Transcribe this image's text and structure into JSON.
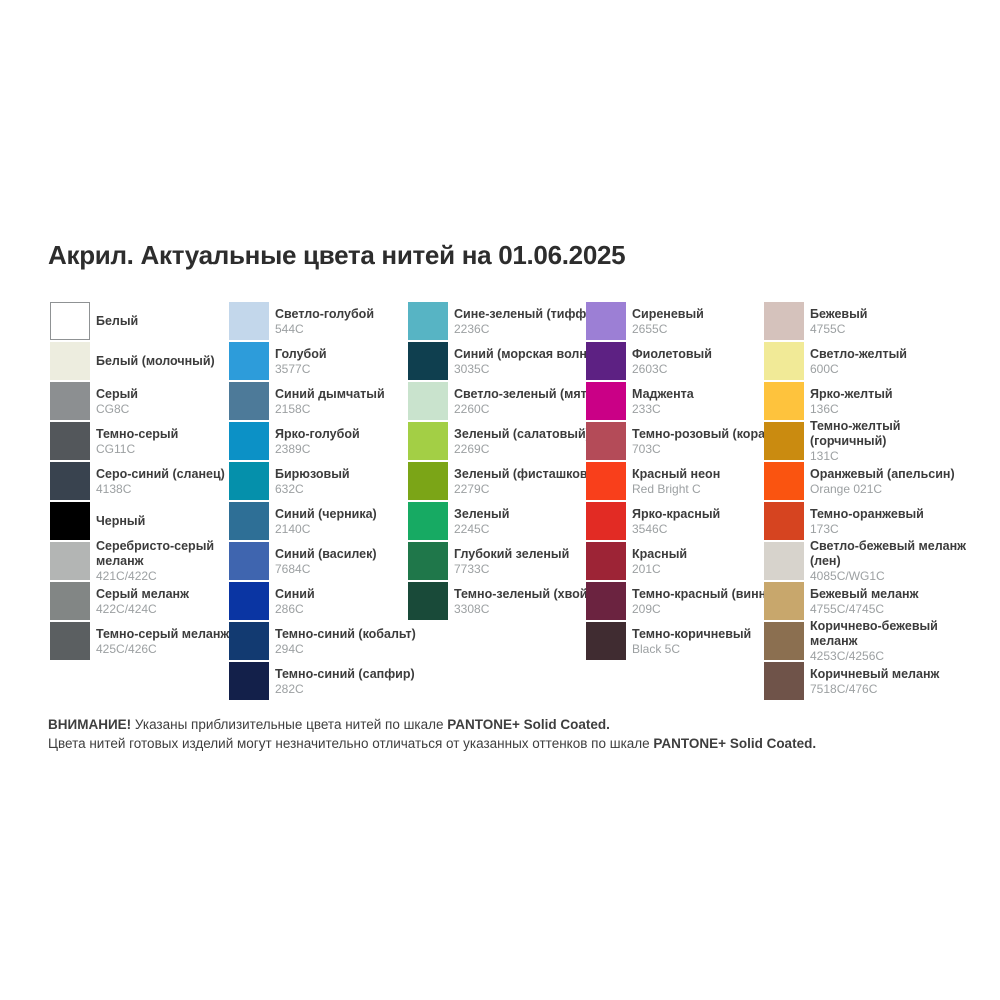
{
  "title": "Акрил. Актуальные цвета нитей на 01.06.2025",
  "columns": [
    {
      "items": [
        {
          "name": "Белый",
          "code": "",
          "hex": "#ffffff",
          "bordered": true
        },
        {
          "name": "Белый (молочный)",
          "code": "",
          "hex": "#ededdf"
        },
        {
          "name": "Серый",
          "code": "CG8C",
          "hex": "#8c8f91"
        },
        {
          "name": "Темно-серый",
          "code": "CG11C",
          "hex": "#53575b"
        },
        {
          "name": "Серо-синий (сланец)",
          "code": "4138C",
          "hex": "#39434f"
        },
        {
          "name": "Черный",
          "code": "",
          "hex": "#000000"
        },
        {
          "name": "Серебристо-серый\nмеланж",
          "code": "421C/422C",
          "hex": "#b3b5b4"
        },
        {
          "name": "Серый меланж",
          "code": "422C/424C",
          "hex": "#828685"
        },
        {
          "name": "Темно-серый меланж",
          "code": "425C/426C",
          "hex": "#5b5f61"
        }
      ]
    },
    {
      "items": [
        {
          "name": "Светло-голубой",
          "code": "544C",
          "hex": "#c3d7eb"
        },
        {
          "name": "Голубой",
          "code": "3577C",
          "hex": "#2d9cda"
        },
        {
          "name": "Синий дымчатый",
          "code": "2158C",
          "hex": "#4d7a99"
        },
        {
          "name": "Ярко-голубой",
          "code": "2389C",
          "hex": "#0c91c6"
        },
        {
          "name": "Бирюзовый",
          "code": "632C",
          "hex": "#0590ab"
        },
        {
          "name": "Синий (черника)",
          "code": "2140C",
          "hex": "#2e6f96"
        },
        {
          "name": "Синий (василек)",
          "code": "7684C",
          "hex": "#3f65af"
        },
        {
          "name": "Синий",
          "code": "286C",
          "hex": "#0a35a3"
        },
        {
          "name": "Темно-синий (кобальт)",
          "code": "294C",
          "hex": "#123a71"
        },
        {
          "name": "Темно-синий (сапфир)",
          "code": "282C",
          "hex": "#13204a"
        }
      ]
    },
    {
      "items": [
        {
          "name": "Сине-зеленый (тиффани)",
          "code": "2236C",
          "hex": "#57b4c4"
        },
        {
          "name": "Синий (морская волна)",
          "code": "3035C",
          "hex": "#0f3f4f"
        },
        {
          "name": "Светло-зеленый (мята)",
          "code": "2260C",
          "hex": "#c9e3cd"
        },
        {
          "name": "Зеленый (салатовый)",
          "code": "2269C",
          "hex": "#a3cf45"
        },
        {
          "name": "Зеленый (фисташковый)",
          "code": "2279C",
          "hex": "#7ba517"
        },
        {
          "name": "Зеленый",
          "code": "2245C",
          "hex": "#17aa63"
        },
        {
          "name": "Глубокий зеленый",
          "code": "7733C",
          "hex": "#1f774a"
        },
        {
          "name": "Темно-зеленый (хвойный)",
          "code": "3308C",
          "hex": "#194a39"
        }
      ]
    },
    {
      "items": [
        {
          "name": "Сиреневый",
          "code": "2655C",
          "hex": "#9c7fd5"
        },
        {
          "name": "Фиолетовый",
          "code": "2603C",
          "hex": "#5d2183"
        },
        {
          "name": "Маджента",
          "code": "233C",
          "hex": "#ca0086"
        },
        {
          "name": "Темно-розовый (коралл)",
          "code": "703C",
          "hex": "#b44b58"
        },
        {
          "name": "Красный неон",
          "code": "Red Bright C",
          "hex": "#f93f1b"
        },
        {
          "name": "Ярко-красный",
          "code": "3546C",
          "hex": "#e22b24"
        },
        {
          "name": "Красный",
          "code": "201C",
          "hex": "#9d2436"
        },
        {
          "name": "Темно-красный (винный)",
          "code": "209C",
          "hex": "#6b2340"
        },
        {
          "name": "Темно-коричневый",
          "code": "Black 5C",
          "hex": "#402c31"
        }
      ]
    },
    {
      "items": [
        {
          "name": "Бежевый",
          "code": "4755C",
          "hex": "#d5c2bc"
        },
        {
          "name": "Светло-желтый",
          "code": "600C",
          "hex": "#f1ea97"
        },
        {
          "name": "Ярко-желтый",
          "code": "136C",
          "hex": "#fec33d"
        },
        {
          "name": "Темно-желтый (горчичный)",
          "code": "131C",
          "hex": "#ca8b10"
        },
        {
          "name": "Оранжевый (апельсин)",
          "code": "Orange 021C",
          "hex": "#fa5410"
        },
        {
          "name": "Темно-оранжевый",
          "code": "173C",
          "hex": "#d64420"
        },
        {
          "name": "Светло-бежевый меланж (лен)",
          "code": "4085C/WG1C",
          "hex": "#d7d3cc"
        },
        {
          "name": "Бежевый меланж",
          "code": "4755C/4745C",
          "hex": "#c8a76c"
        },
        {
          "name": "Коричнево-бежевый меланж",
          "code": "4253C/4256C",
          "hex": "#8b6f50"
        },
        {
          "name": "Коричневый меланж",
          "code": "7518C/476C",
          "hex": "#6f5349"
        }
      ]
    }
  ],
  "footer": {
    "line1": {
      "bold1": "ВНИМАНИЕ!",
      "text": " Указаны приблизительные цвета нитей по шкале ",
      "bold2": "PANTONE+ Solid Coated."
    },
    "line2": {
      "text": "Цвета нитей готовых изделий могут незначительно отличаться от указанных оттенков по шкале ",
      "bold": "PANTONE+ Solid Coated."
    }
  }
}
